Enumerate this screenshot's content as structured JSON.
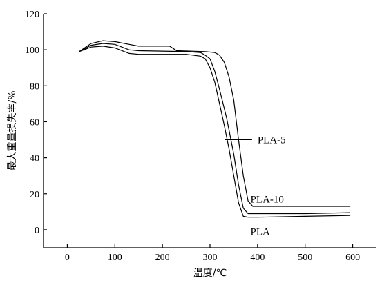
{
  "chart_data": {
    "type": "line",
    "xlabel": "温度/℃",
    "ylabel": "最大重量损失率/%",
    "xlim": [
      -50,
      650
    ],
    "ylim": [
      -10,
      120
    ],
    "xticks": [
      0,
      100,
      200,
      300,
      400,
      500,
      600
    ],
    "yticks": [
      0,
      20,
      40,
      60,
      80,
      100,
      120
    ],
    "grid": false,
    "series": [
      {
        "name": "PLA-5",
        "points": [
          [
            25,
            99
          ],
          [
            50,
            103.5
          ],
          [
            75,
            105
          ],
          [
            100,
            104.5
          ],
          [
            130,
            103
          ],
          [
            150,
            102
          ],
          [
            200,
            102
          ],
          [
            215,
            102
          ],
          [
            230,
            99.5
          ],
          [
            290,
            99
          ],
          [
            310,
            98.5
          ],
          [
            320,
            97
          ],
          [
            330,
            93
          ],
          [
            340,
            85
          ],
          [
            350,
            72
          ],
          [
            360,
            50
          ],
          [
            370,
            30
          ],
          [
            380,
            16
          ],
          [
            390,
            13
          ],
          [
            420,
            13
          ],
          [
            500,
            13
          ],
          [
            595,
            13
          ]
        ]
      },
      {
        "name": "PLA-10",
        "points": [
          [
            25,
            99
          ],
          [
            50,
            102.5
          ],
          [
            75,
            103.5
          ],
          [
            100,
            103
          ],
          [
            130,
            100
          ],
          [
            150,
            99.5
          ],
          [
            250,
            99
          ],
          [
            280,
            98.5
          ],
          [
            290,
            97
          ],
          [
            300,
            95
          ],
          [
            310,
            88
          ],
          [
            320,
            78
          ],
          [
            335,
            62
          ],
          [
            350,
            42
          ],
          [
            360,
            25
          ],
          [
            370,
            12
          ],
          [
            380,
            9
          ],
          [
            400,
            9
          ],
          [
            500,
            9
          ],
          [
            595,
            9.5
          ]
        ]
      },
      {
        "name": "PLA",
        "points": [
          [
            25,
            99
          ],
          [
            50,
            101.5
          ],
          [
            75,
            102
          ],
          [
            100,
            101
          ],
          [
            130,
            98
          ],
          [
            150,
            97.5
          ],
          [
            250,
            97.5
          ],
          [
            280,
            96.5
          ],
          [
            290,
            95
          ],
          [
            300,
            90
          ],
          [
            310,
            82
          ],
          [
            320,
            70
          ],
          [
            330,
            58
          ],
          [
            340,
            45
          ],
          [
            350,
            30
          ],
          [
            360,
            15
          ],
          [
            370,
            7.5
          ],
          [
            380,
            7
          ],
          [
            400,
            7
          ],
          [
            500,
            7.5
          ],
          [
            595,
            8
          ]
        ]
      }
    ],
    "annotations": [
      {
        "label": "PLA-5",
        "x": 360,
        "y": 50,
        "text_x": 400,
        "text_y": 50
      },
      {
        "label": "PLA-10",
        "x": 385,
        "y": 17,
        "text_x": 385,
        "text_y": 17
      },
      {
        "label": "PLA",
        "x": 385,
        "y": -1,
        "text_x": 385,
        "text_y": -1
      }
    ]
  }
}
